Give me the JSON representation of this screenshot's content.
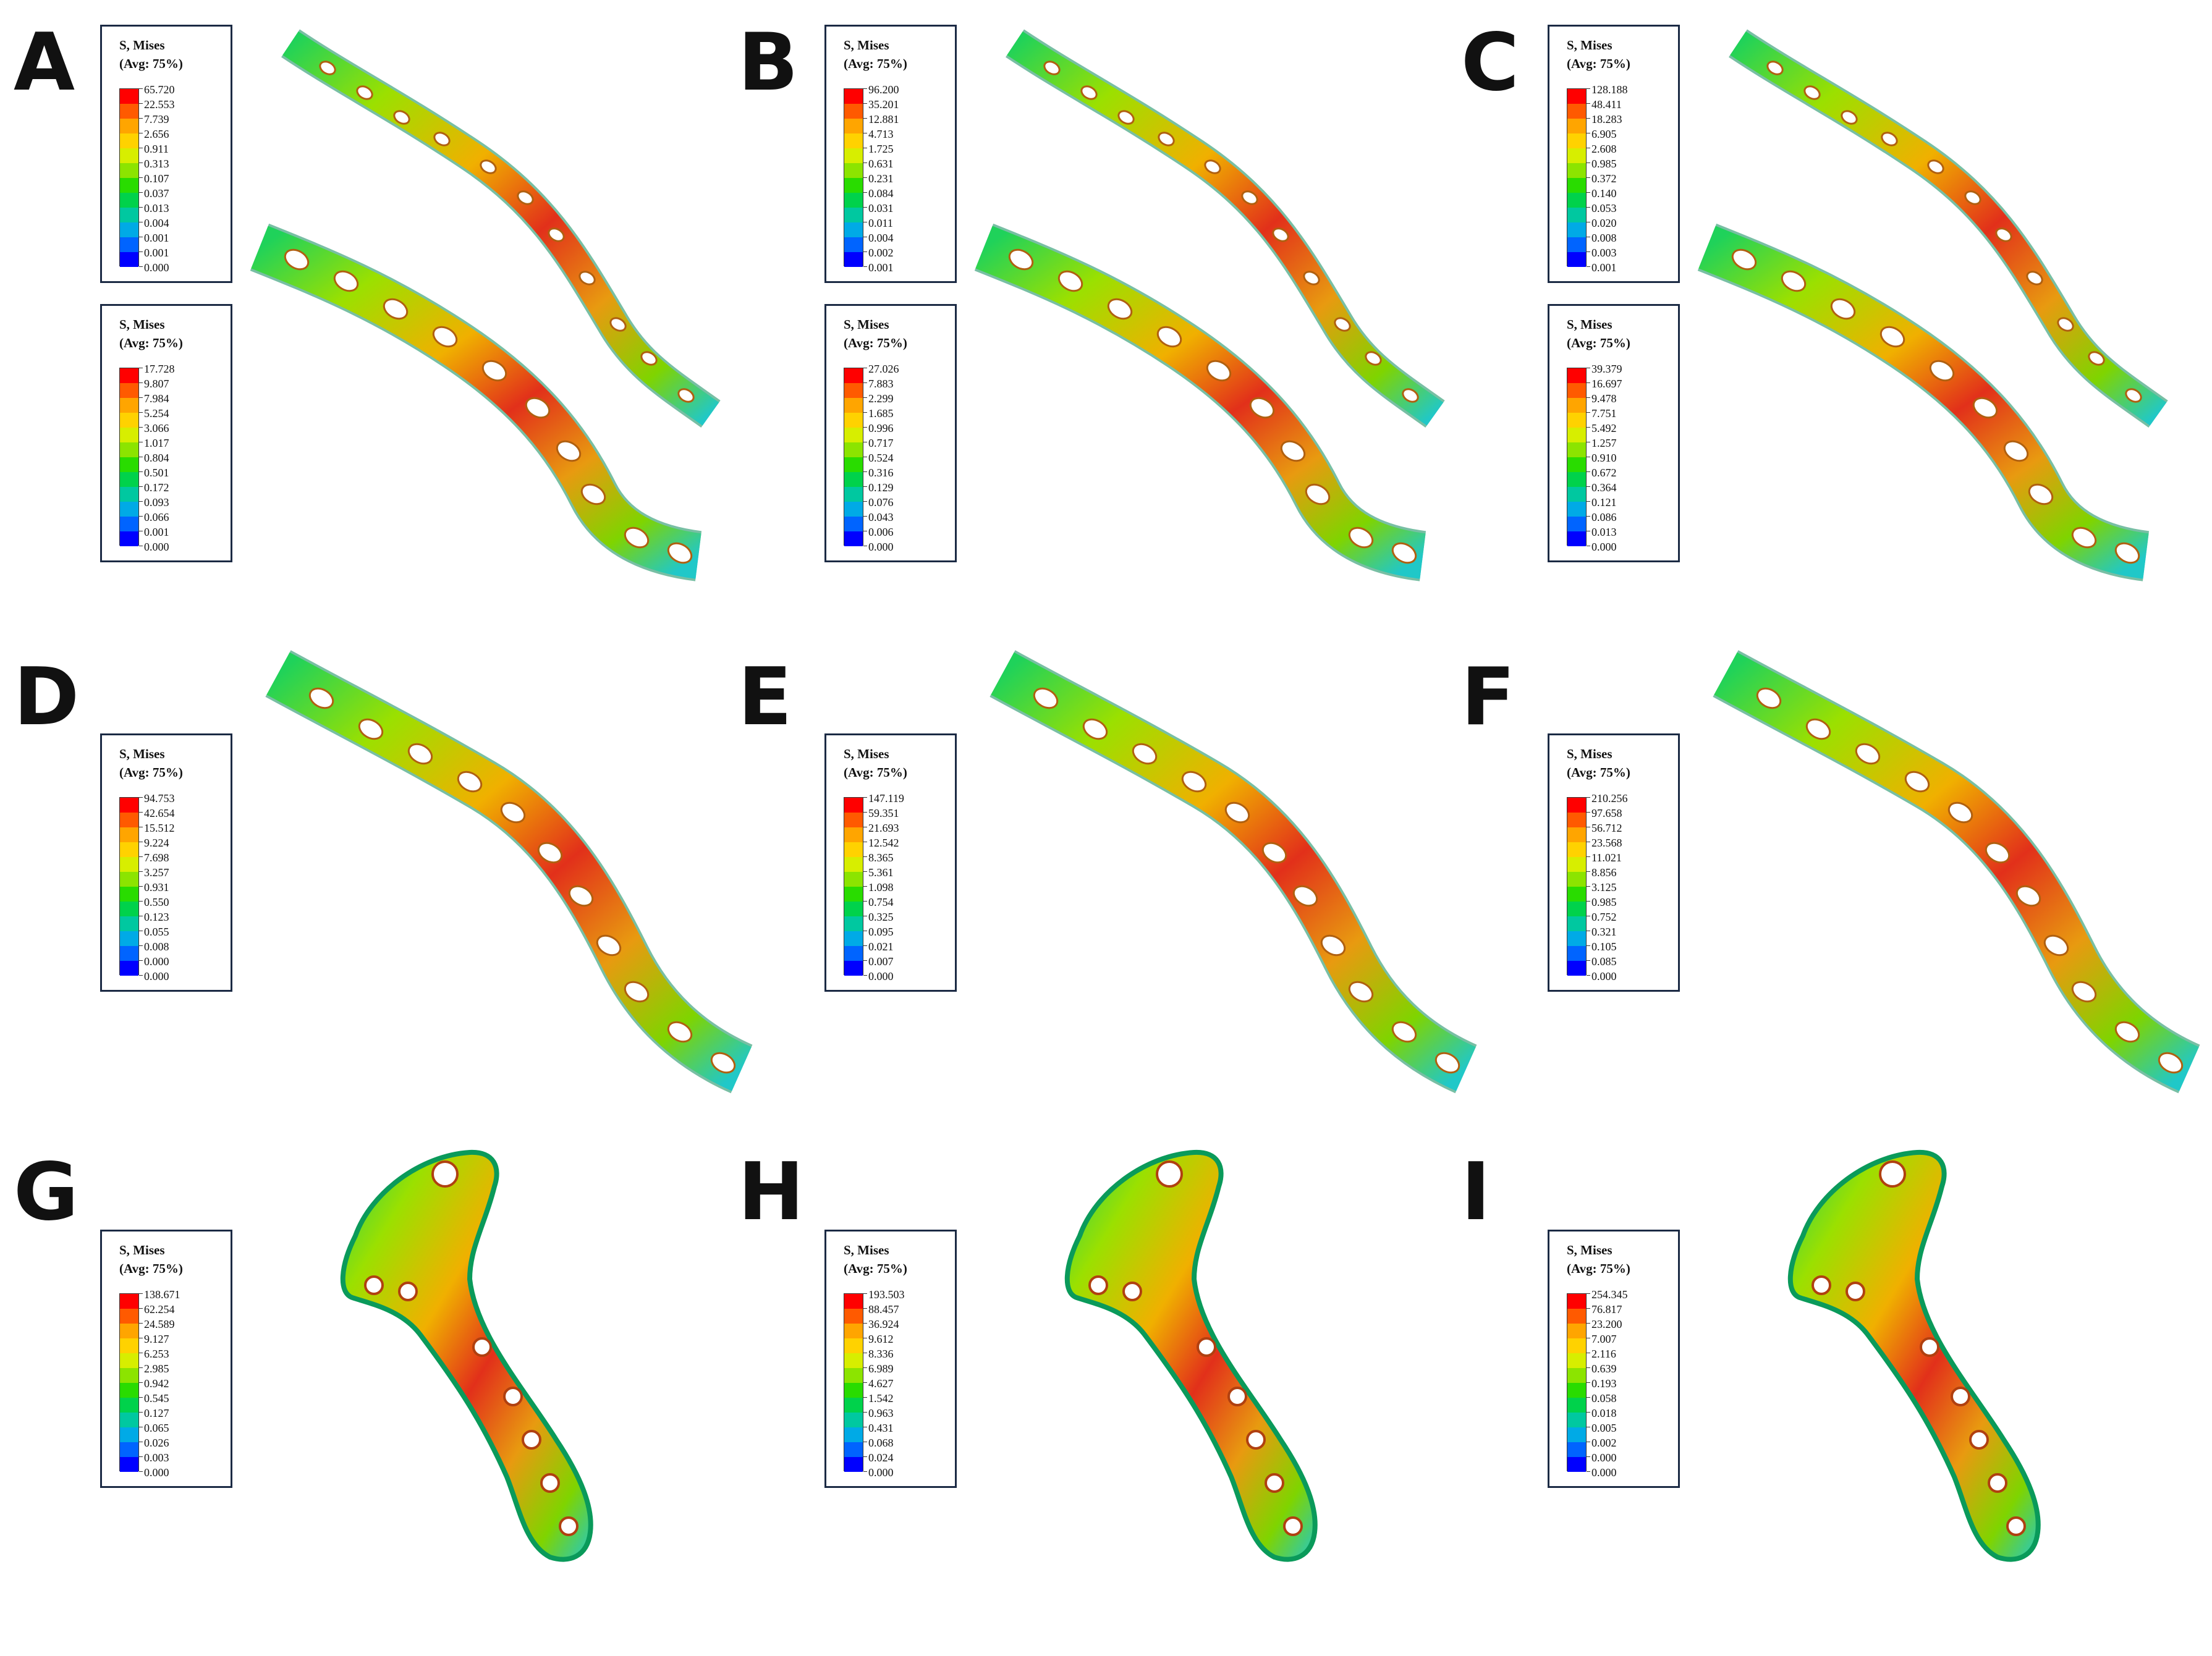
{
  "colorbar": [
    "#ff0000",
    "#ff5a00",
    "#ffa500",
    "#ffd200",
    "#d7ee00",
    "#8ce400",
    "#29dc00",
    "#00d24b",
    "#00c8a0",
    "#00aae6",
    "#0064ff",
    "#0000ff"
  ],
  "panels": [
    {
      "label": "A",
      "legends": [
        {
          "title": "S, Mises",
          "subtitle": "(Avg: 75%)",
          "values": [
            "65.720",
            "22.553",
            "7.739",
            "2.656",
            "0.911",
            "0.313",
            "0.107",
            "0.037",
            "0.013",
            "0.004",
            "0.001",
            "0.001",
            "0.000"
          ]
        },
        {
          "title": "S, Mises",
          "subtitle": "(Avg: 75%)",
          "values": [
            "17.728",
            "9.807",
            "7.984",
            "5.254",
            "3.066",
            "1.017",
            "0.804",
            "0.501",
            "0.172",
            "0.093",
            "0.066",
            "0.001",
            "0.000"
          ]
        }
      ]
    },
    {
      "label": "B",
      "legends": [
        {
          "title": "S, Mises",
          "subtitle": "(Avg: 75%)",
          "values": [
            "96.200",
            "35.201",
            "12.881",
            "4.713",
            "1.725",
            "0.631",
            "0.231",
            "0.084",
            "0.031",
            "0.011",
            "0.004",
            "0.002",
            "0.001"
          ]
        },
        {
          "title": "S, Mises",
          "subtitle": "(Avg: 75%)",
          "values": [
            "27.026",
            "7.883",
            "2.299",
            "1.685",
            "0.996",
            "0.717",
            "0.524",
            "0.316",
            "0.129",
            "0.076",
            "0.043",
            "0.006",
            "0.000"
          ]
        }
      ]
    },
    {
      "label": "C",
      "legends": [
        {
          "title": "S, Mises",
          "subtitle": "(Avg: 75%)",
          "values": [
            "128.188",
            "48.411",
            "18.283",
            "6.905",
            "2.608",
            "0.985",
            "0.372",
            "0.140",
            "0.053",
            "0.020",
            "0.008",
            "0.003",
            "0.001"
          ]
        },
        {
          "title": "S, Mises",
          "subtitle": "(Avg: 75%)",
          "values": [
            "39.379",
            "16.697",
            "9.478",
            "7.751",
            "5.492",
            "1.257",
            "0.910",
            "0.672",
            "0.364",
            "0.121",
            "0.086",
            "0.013",
            "0.000"
          ]
        }
      ]
    },
    {
      "label": "D",
      "legends": [
        {
          "title": "S, Mises",
          "subtitle": "(Avg: 75%)",
          "values": [
            "94.753",
            "42.654",
            "15.512",
            "9.224",
            "7.698",
            "3.257",
            "0.931",
            "0.550",
            "0.123",
            "0.055",
            "0.008",
            "0.000",
            "0.000"
          ]
        }
      ]
    },
    {
      "label": "E",
      "legends": [
        {
          "title": "S, Mises",
          "subtitle": "(Avg: 75%)",
          "values": [
            "147.119",
            "59.351",
            "21.693",
            "12.542",
            "8.365",
            "5.361",
            "1.098",
            "0.754",
            "0.325",
            "0.095",
            "0.021",
            "0.007",
            "0.000"
          ]
        }
      ]
    },
    {
      "label": "F",
      "legends": [
        {
          "title": "S, Mises",
          "subtitle": "(Avg: 75%)",
          "values": [
            "210.256",
            "97.658",
            "56.712",
            "23.568",
            "11.021",
            "8.856",
            "3.125",
            "0.985",
            "0.752",
            "0.321",
            "0.105",
            "0.085",
            "0.000"
          ]
        }
      ]
    },
    {
      "label": "G",
      "legends": [
        {
          "title": "S, Mises",
          "subtitle": "(Avg: 75%)",
          "values": [
            "138.671",
            "62.254",
            "24.589",
            "9.127",
            "6.253",
            "2.985",
            "0.942",
            "0.545",
            "0.127",
            "0.065",
            "0.026",
            "0.003",
            "0.000"
          ]
        }
      ]
    },
    {
      "label": "H",
      "legends": [
        {
          "title": "S, Mises",
          "subtitle": "(Avg: 75%)",
          "values": [
            "193.503",
            "88.457",
            "36.924",
            "9.612",
            "8.336",
            "6.989",
            "4.627",
            "1.542",
            "0.963",
            "0.431",
            "0.068",
            "0.024",
            "0.000"
          ]
        }
      ]
    },
    {
      "label": "I",
      "legends": [
        {
          "title": "S, Mises",
          "subtitle": "(Avg: 75%)",
          "values": [
            "254.345",
            "76.817",
            "23.200",
            "7.007",
            "2.116",
            "0.639",
            "0.193",
            "0.058",
            "0.018",
            "0.005",
            "0.002",
            "0.000",
            "0.000"
          ]
        }
      ]
    }
  ]
}
